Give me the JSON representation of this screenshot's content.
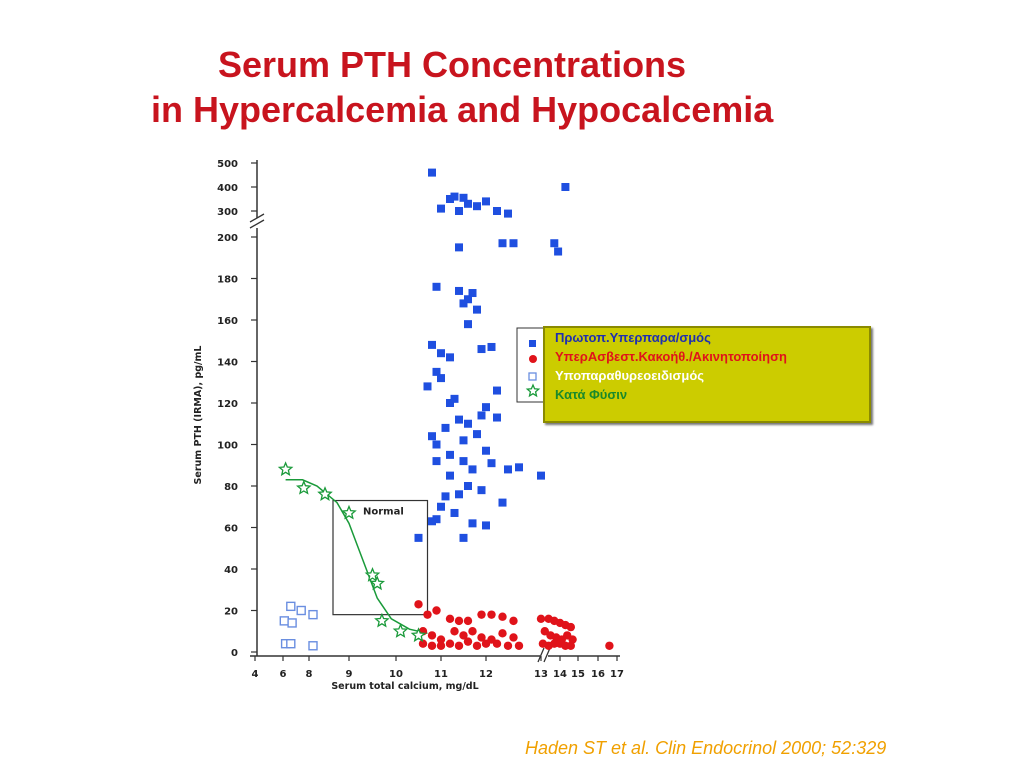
{
  "title_line1": "Serum PTH Concentrations",
  "title_line2": "in Hypercalcemia and Hypocalcemia",
  "citation": "Haden ST et al. Clin Endocrinol 2000; 52:329",
  "colors": {
    "title": "#c8141e",
    "citation": "#f0a000",
    "primary_hpt": "#1f4fe0",
    "malignancy": "#e0131a",
    "hypopara": "#6a8ee0",
    "normal": "#1a9a3a",
    "legend_bg": "#cccc00"
  },
  "chart_data": {
    "type": "scatter",
    "xlabel": "Serum total calcium, mg/dL",
    "ylabel": "Serum PTH (IRMA), pg/mL",
    "x_ticks": [
      "4",
      "6",
      "8",
      "9",
      "10",
      "11",
      "12",
      "13",
      "14",
      "15",
      "16",
      "17"
    ],
    "y_ticks": [
      "0",
      "20",
      "40",
      "60",
      "80",
      "100",
      "120",
      "140",
      "160",
      "180",
      "200",
      "300",
      "400",
      "500"
    ],
    "axis_breaks": [
      "y between 200 and 300",
      "x between 12 and 13"
    ],
    "normal_box_label": "Normal",
    "legend": {
      "placement": "right",
      "entries": [
        {
          "label": "Πρωτοπ.Υπερπαρα/σμός",
          "color": "#1f4fe0",
          "marker": "filled-square"
        },
        {
          "label": "ΥπερΑσβεστ.Κακοήθ./Ακινητοποίηση",
          "color": "#e0131a",
          "marker": "filled-circle"
        },
        {
          "label": "Υποπαραθυρεοειδισμός",
          "color": "#ffffff",
          "marker": "open-square"
        },
        {
          "label": "Κατά Φύσιν",
          "color": "#1a9a3a",
          "marker": "star"
        }
      ]
    },
    "series": [
      {
        "name": "Πρωτοπ.Υπερπαρα/σμός",
        "marker": "filled-square",
        "points": [
          [
            10.8,
            460
          ],
          [
            11.0,
            310
          ],
          [
            11.2,
            350
          ],
          [
            11.3,
            360
          ],
          [
            11.5,
            355
          ],
          [
            11.4,
            300
          ],
          [
            11.6,
            330
          ],
          [
            11.8,
            320
          ],
          [
            12.0,
            340
          ],
          [
            12.2,
            300
          ],
          [
            12.4,
            290
          ],
          [
            14.3,
            400
          ],
          [
            11.4,
            195
          ],
          [
            12.3,
            197
          ],
          [
            12.5,
            197
          ],
          [
            13.7,
            197
          ],
          [
            13.9,
            193
          ],
          [
            11.4,
            174
          ],
          [
            10.9,
            176
          ],
          [
            11.7,
            173
          ],
          [
            11.6,
            170
          ],
          [
            11.8,
            165
          ],
          [
            11.5,
            168
          ],
          [
            11.6,
            158
          ],
          [
            10.8,
            148
          ],
          [
            11.0,
            144
          ],
          [
            11.2,
            142
          ],
          [
            12.1,
            147
          ],
          [
            11.9,
            146
          ],
          [
            12.2,
            126
          ],
          [
            10.7,
            128
          ],
          [
            10.9,
            135
          ],
          [
            11.0,
            132
          ],
          [
            11.2,
            120
          ],
          [
            11.3,
            122
          ],
          [
            11.4,
            112
          ],
          [
            11.6,
            110
          ],
          [
            12.0,
            118
          ],
          [
            11.9,
            114
          ],
          [
            12.2,
            113
          ],
          [
            11.8,
            105
          ],
          [
            11.5,
            102
          ],
          [
            11.1,
            108
          ],
          [
            10.9,
            100
          ],
          [
            11.2,
            95
          ],
          [
            11.5,
            92
          ],
          [
            12.0,
            97
          ],
          [
            12.1,
            91
          ],
          [
            11.7,
            88
          ],
          [
            12.4,
            88
          ],
          [
            12.6,
            89
          ],
          [
            13.0,
            85
          ],
          [
            11.2,
            85
          ],
          [
            11.6,
            80
          ],
          [
            11.9,
            78
          ],
          [
            11.4,
            76
          ],
          [
            11.1,
            75
          ],
          [
            11.0,
            70
          ],
          [
            11.3,
            67
          ],
          [
            10.9,
            64
          ],
          [
            10.8,
            63
          ],
          [
            11.7,
            62
          ],
          [
            12.0,
            61
          ],
          [
            10.5,
            55
          ],
          [
            11.5,
            55
          ],
          [
            12.3,
            72
          ],
          [
            10.9,
            92
          ],
          [
            10.8,
            104
          ]
        ]
      },
      {
        "name": "ΥπερΑσβεστ.Κακοήθ./Ακινητοποίηση",
        "marker": "filled-circle",
        "points": [
          [
            10.5,
            23
          ],
          [
            10.7,
            18
          ],
          [
            10.9,
            20
          ],
          [
            11.2,
            16
          ],
          [
            11.4,
            15
          ],
          [
            11.6,
            15
          ],
          [
            11.9,
            18
          ],
          [
            12.1,
            18
          ],
          [
            12.3,
            17
          ],
          [
            12.5,
            15
          ],
          [
            10.6,
            10
          ],
          [
            10.8,
            8
          ],
          [
            11.0,
            6
          ],
          [
            11.3,
            10
          ],
          [
            11.5,
            8
          ],
          [
            11.7,
            10
          ],
          [
            11.9,
            7
          ],
          [
            12.1,
            6
          ],
          [
            12.3,
            9
          ],
          [
            12.5,
            7
          ],
          [
            10.6,
            4
          ],
          [
            10.8,
            3
          ],
          [
            11.0,
            3
          ],
          [
            11.2,
            4
          ],
          [
            11.4,
            3
          ],
          [
            11.6,
            5
          ],
          [
            11.8,
            3
          ],
          [
            12.0,
            4
          ],
          [
            12.2,
            4
          ],
          [
            12.4,
            3
          ],
          [
            12.6,
            3
          ],
          [
            13.0,
            16
          ],
          [
            13.4,
            16
          ],
          [
            13.7,
            15
          ],
          [
            14.0,
            14
          ],
          [
            14.3,
            13
          ],
          [
            14.6,
            12
          ],
          [
            13.2,
            10
          ],
          [
            13.5,
            8
          ],
          [
            13.8,
            7
          ],
          [
            14.1,
            6
          ],
          [
            14.4,
            8
          ],
          [
            14.7,
            6
          ],
          [
            13.1,
            4
          ],
          [
            13.4,
            3
          ],
          [
            13.7,
            4
          ],
          [
            14.0,
            4
          ],
          [
            14.3,
            3
          ],
          [
            14.6,
            3
          ],
          [
            16.6,
            3
          ]
        ]
      },
      {
        "name": "Υποπαραθυρεοειδισμός",
        "marker": "open-square",
        "points": [
          [
            6.1,
            15
          ],
          [
            6.6,
            22
          ],
          [
            7.4,
            20
          ],
          [
            6.7,
            14
          ],
          [
            8.1,
            18
          ],
          [
            6.2,
            4
          ],
          [
            6.6,
            4
          ],
          [
            8.1,
            3
          ]
        ]
      },
      {
        "name": "Κατά Φύσιν",
        "marker": "star",
        "points": [
          [
            6.2,
            88
          ],
          [
            7.6,
            79
          ],
          [
            8.4,
            76
          ],
          [
            9.0,
            67
          ],
          [
            9.5,
            37
          ],
          [
            9.6,
            33
          ],
          [
            9.7,
            15
          ],
          [
            10.1,
            10
          ],
          [
            10.5,
            8
          ]
        ]
      }
    ],
    "normal_curve": [
      [
        6.2,
        83
      ],
      [
        7.5,
        83
      ],
      [
        8.2,
        80
      ],
      [
        8.7,
        72
      ],
      [
        9.0,
        62
      ],
      [
        9.2,
        50
      ],
      [
        9.4,
        38
      ],
      [
        9.6,
        26
      ],
      [
        9.9,
        16
      ],
      [
        10.3,
        11
      ],
      [
        10.7,
        9
      ]
    ],
    "normal_range_box": {
      "x": [
        8.6,
        10.7
      ],
      "y": [
        18,
        73
      ]
    }
  }
}
